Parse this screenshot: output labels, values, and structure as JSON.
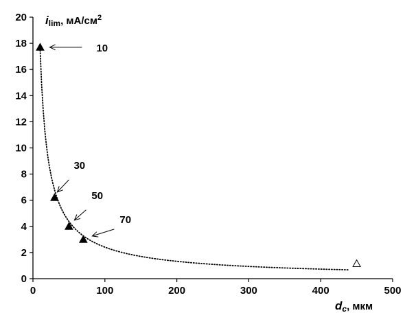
{
  "chart_data": {
    "type": "scatter",
    "x_axis": {
      "label_main": "d",
      "label_sub": "c",
      "label_unit": ", мкм",
      "range": [
        0,
        500
      ],
      "ticks": [
        0,
        100,
        200,
        300,
        400,
        500
      ]
    },
    "y_axis": {
      "label_main": "i",
      "label_sub": "lim",
      "label_unit": ", мА/см",
      "label_sup": "2",
      "range": [
        0,
        20
      ],
      "ticks": [
        0,
        2,
        4,
        6,
        8,
        10,
        12,
        14,
        16,
        18,
        20
      ]
    },
    "grid": false,
    "series": [
      {
        "marker": "filled-triangle",
        "color": "#000000",
        "points": [
          {
            "x": 10,
            "y": 17.7
          },
          {
            "x": 30,
            "y": 6.2
          },
          {
            "x": 50,
            "y": 4.0
          },
          {
            "x": 70,
            "y": 3.0
          }
        ]
      },
      {
        "marker": "open-triangle",
        "color": "#000000",
        "points": [
          {
            "x": 450,
            "y": 1.15
          }
        ]
      }
    ],
    "trendline": {
      "style": "dotted",
      "form": "power",
      "coef": 126.5,
      "exponent": -0.86,
      "x_range": [
        10,
        440
      ]
    },
    "annotations": [
      {
        "text": "10",
        "x": 10,
        "y": 17.7
      },
      {
        "text": "30",
        "x": 30,
        "y": 6.2
      },
      {
        "text": "50",
        "x": 50,
        "y": 4.0
      },
      {
        "text": "70",
        "x": 70,
        "y": 3.0
      }
    ]
  }
}
